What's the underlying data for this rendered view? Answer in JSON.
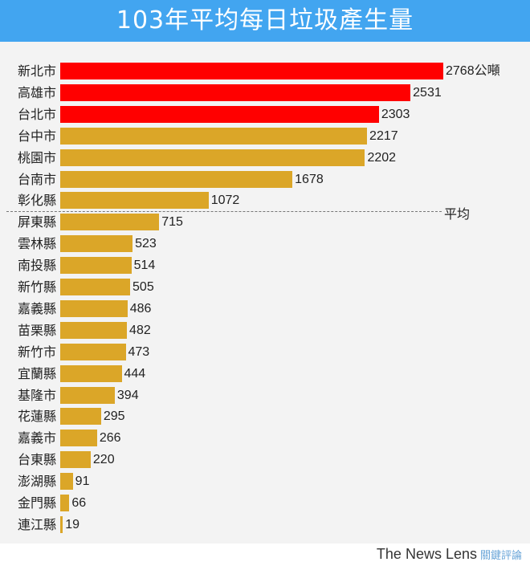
{
  "title": "103年平均每日垃圾產生量",
  "colors": {
    "title_bg": "#42a5f0",
    "highlight": "#ff0000",
    "normal": "#dba628",
    "panel_bg": "#f3f3f3"
  },
  "average_label": "平均",
  "unit": "公噸",
  "footer": {
    "brand": "The News Lens",
    "brand_cn": "關鍵評論"
  },
  "chart_data": {
    "type": "bar",
    "orientation": "horizontal",
    "title": "103年平均每日垃圾產生量",
    "xlabel": "",
    "ylabel": "",
    "unit": "公噸",
    "categories": [
      "新北市",
      "高雄市",
      "台北市",
      "台中市",
      "桃園市",
      "台南市",
      "彰化縣",
      "屏東縣",
      "雲林縣",
      "南投縣",
      "新竹縣",
      "嘉義縣",
      "苗栗縣",
      "新竹市",
      "宜蘭縣",
      "基隆市",
      "花蓮縣",
      "嘉義市",
      "台東縣",
      "澎湖縣",
      "金門縣",
      "連江縣"
    ],
    "values": [
      2768,
      2531,
      2303,
      2217,
      2202,
      1678,
      1072,
      715,
      523,
      514,
      505,
      486,
      482,
      473,
      444,
      394,
      295,
      266,
      220,
      91,
      66,
      19
    ],
    "highlighted": [
      true,
      true,
      true,
      false,
      false,
      false,
      false,
      false,
      false,
      false,
      false,
      false,
      false,
      false,
      false,
      false,
      false,
      false,
      false,
      false,
      false,
      false
    ],
    "annotations": [
      {
        "type": "dashed-line",
        "label": "平均",
        "position": "between 彰化縣 and 屏東縣"
      }
    ],
    "grid": false,
    "legend": null
  }
}
